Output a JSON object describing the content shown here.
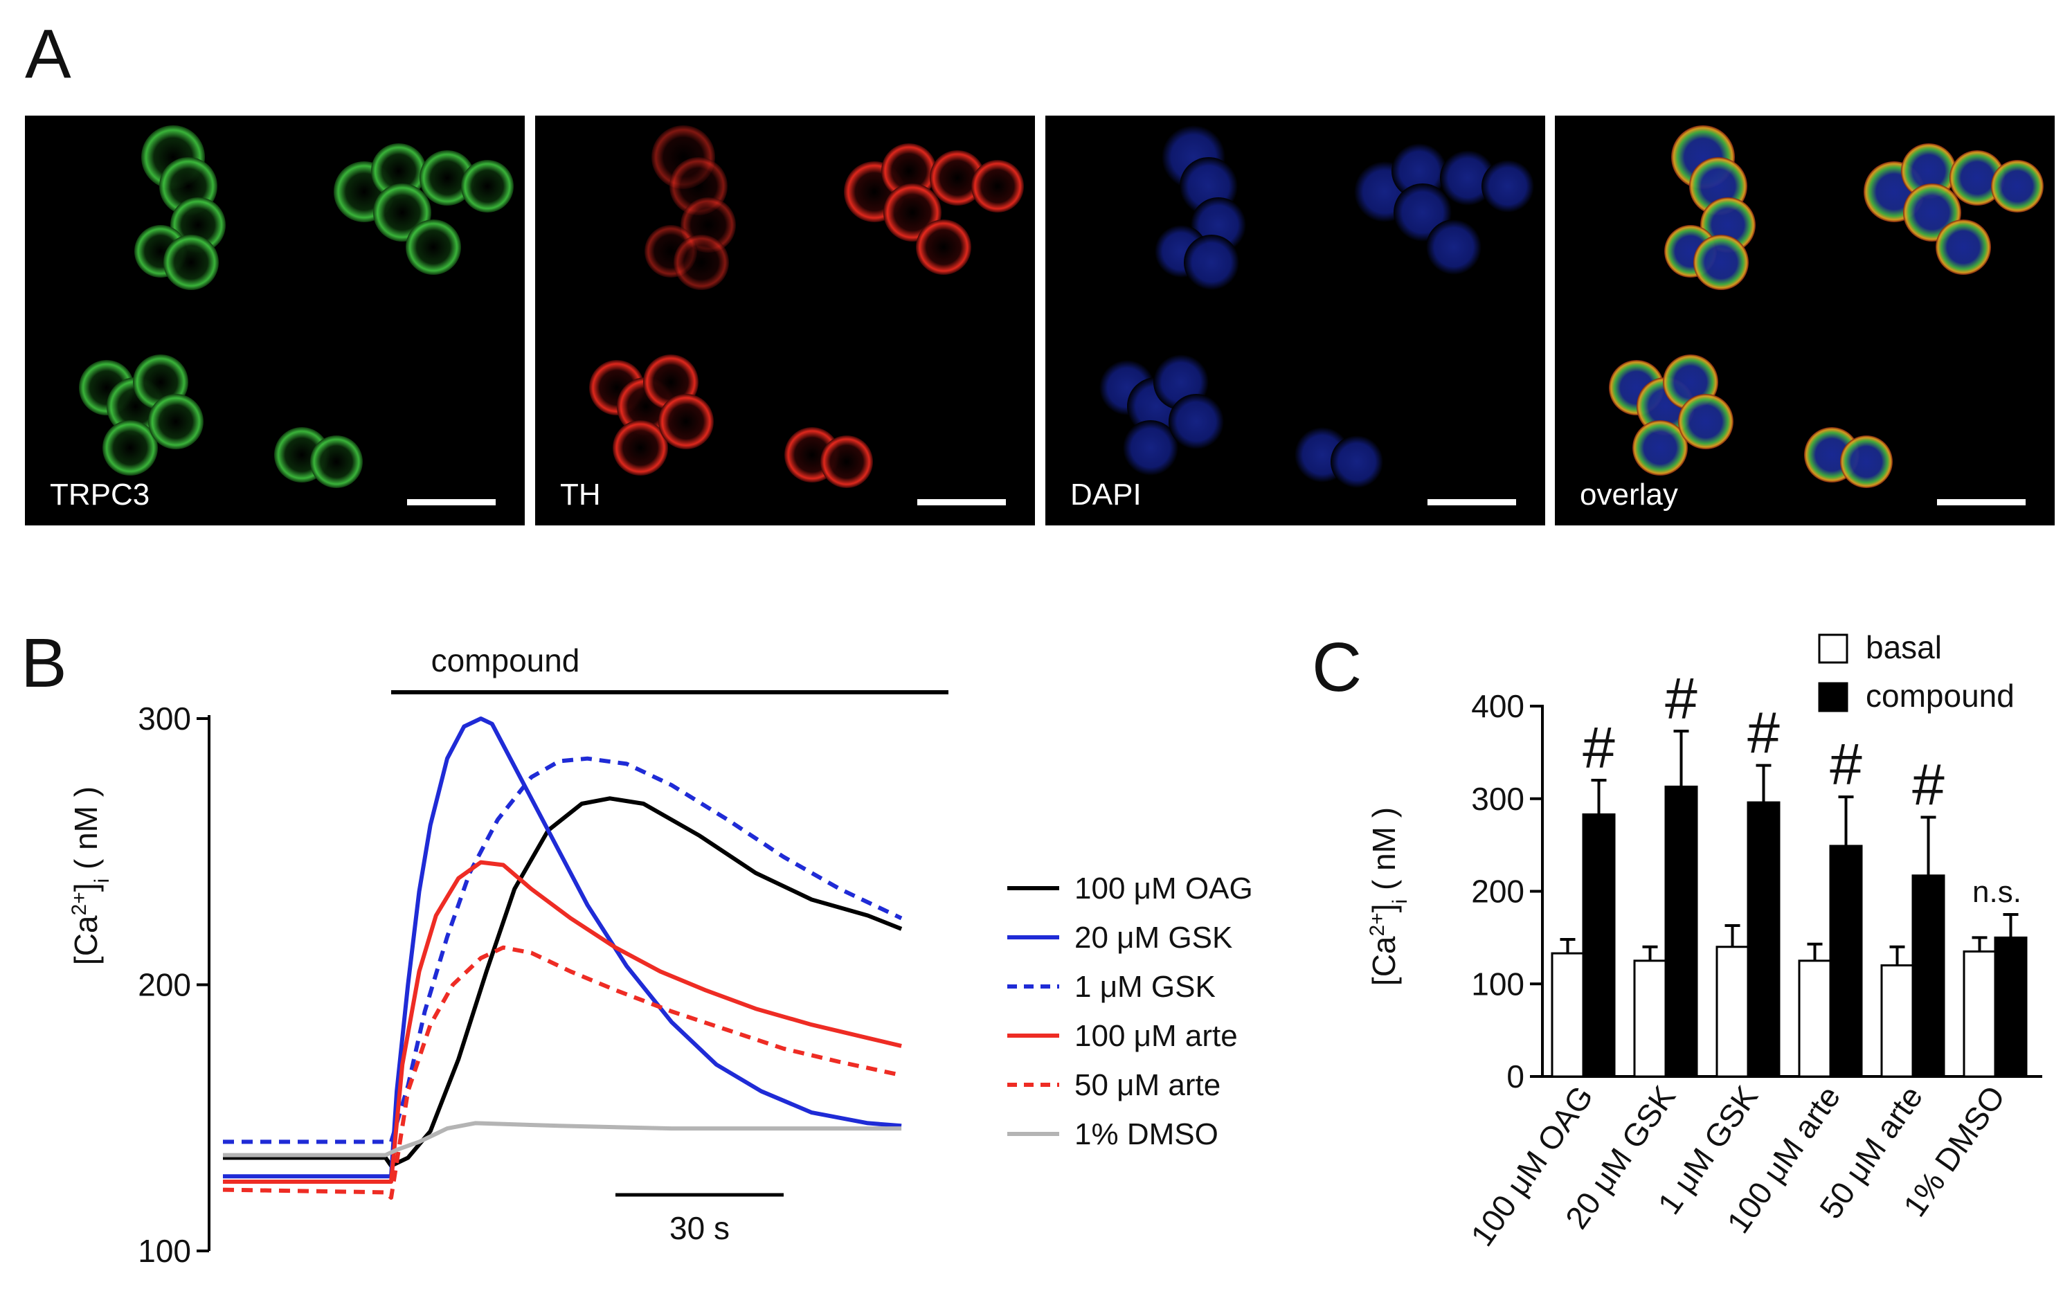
{
  "panel_a": {
    "letter": "A",
    "images": [
      {
        "label": "TRPC3",
        "stain": "green",
        "color": "#2fae2f"
      },
      {
        "label": "TH",
        "stain": "red",
        "color": "#d9201c"
      },
      {
        "label": "DAPI",
        "stain": "blue",
        "color": "#1c2c9e"
      },
      {
        "label": "overlay",
        "stain": "overlay",
        "color": "#d8a020"
      }
    ]
  },
  "chart_data": [
    {
      "panel_letter": "B",
      "type": "line",
      "bar_label": "compound",
      "ylabel": "[Ca2+]i ( nM )",
      "ylabel_parts": {
        "base": "[Ca",
        "sup": "2+",
        "close": "]",
        "sub": "i",
        "units": "  ( nM )"
      },
      "yticks": [
        "100",
        "200",
        "300"
      ],
      "ylim": [
        100,
        300
      ],
      "time_window_s": [
        0,
        130
      ],
      "compound_on_s": 30,
      "scale_bar_label": "30 s",
      "scale_bar_s": 30,
      "series": [
        {
          "name": "100 μM OAG",
          "color": "#000000",
          "dash": "solid",
          "points": [
            [
              0,
              135
            ],
            [
              29,
              135
            ],
            [
              30,
              132
            ],
            [
              33,
              135
            ],
            [
              37,
              145
            ],
            [
              42,
              172
            ],
            [
              47,
              205
            ],
            [
              52,
              236
            ],
            [
              58,
              258
            ],
            [
              64,
              268
            ],
            [
              69,
              270
            ],
            [
              75,
              268
            ],
            [
              85,
              256
            ],
            [
              95,
              242
            ],
            [
              105,
              232
            ],
            [
              115,
              226
            ],
            [
              121,
              221
            ]
          ]
        },
        {
          "name": "20 μM GSK",
          "color": "#1f2bd6",
          "dash": "solid",
          "points": [
            [
              0,
              128
            ],
            [
              29,
              128
            ],
            [
              30,
              128
            ],
            [
              31,
              160
            ],
            [
              33,
              200
            ],
            [
              35,
              235
            ],
            [
              37,
              260
            ],
            [
              40,
              285
            ],
            [
              43,
              297
            ],
            [
              46,
              300
            ],
            [
              48,
              298
            ],
            [
              52,
              282
            ],
            [
              58,
              258
            ],
            [
              65,
              230
            ],
            [
              72,
              207
            ],
            [
              80,
              186
            ],
            [
              88,
              170
            ],
            [
              96,
              160
            ],
            [
              105,
              152
            ],
            [
              115,
              148
            ],
            [
              121,
              147
            ]
          ]
        },
        {
          "name": "1 μM GSK",
          "color": "#1f2bd6",
          "dash": "dashed",
          "points": [
            [
              0,
              141
            ],
            [
              29,
              141
            ],
            [
              30,
              141
            ],
            [
              33,
              162
            ],
            [
              36,
              190
            ],
            [
              40,
              218
            ],
            [
              44,
              242
            ],
            [
              49,
              262
            ],
            [
              55,
              278
            ],
            [
              60,
              284
            ],
            [
              65,
              285
            ],
            [
              72,
              283
            ],
            [
              80,
              275
            ],
            [
              90,
              262
            ],
            [
              100,
              248
            ],
            [
              110,
              236
            ],
            [
              121,
              225
            ]
          ]
        },
        {
          "name": "100 μM arte",
          "color": "#ee2c24",
          "dash": "solid",
          "points": [
            [
              0,
              126
            ],
            [
              29,
              126
            ],
            [
              30,
              126
            ],
            [
              32,
              170
            ],
            [
              35,
              205
            ],
            [
              38,
              226
            ],
            [
              42,
              240
            ],
            [
              46,
              246
            ],
            [
              50,
              245
            ],
            [
              55,
              236
            ],
            [
              62,
              225
            ],
            [
              70,
              214
            ],
            [
              78,
              205
            ],
            [
              86,
              198
            ],
            [
              95,
              191
            ],
            [
              105,
              185
            ],
            [
              115,
              180
            ],
            [
              121,
              177
            ]
          ]
        },
        {
          "name": "50 μM arte",
          "color": "#ee2c24",
          "dash": "dashed",
          "points": [
            [
              0,
              123
            ],
            [
              29,
              122
            ],
            [
              30,
              120
            ],
            [
              33,
              160
            ],
            [
              37,
              185
            ],
            [
              41,
              200
            ],
            [
              46,
              210
            ],
            [
              50,
              214
            ],
            [
              55,
              212
            ],
            [
              62,
              205
            ],
            [
              70,
              198
            ],
            [
              80,
              190
            ],
            [
              90,
              183
            ],
            [
              100,
              176
            ],
            [
              110,
              171
            ],
            [
              121,
              166
            ]
          ]
        },
        {
          "name": "1% DMSO",
          "color": "#b4b4b4",
          "dash": "solid",
          "points": [
            [
              0,
              136
            ],
            [
              29,
              136
            ],
            [
              31,
              138
            ],
            [
              35,
              141
            ],
            [
              40,
              146
            ],
            [
              45,
              148
            ],
            [
              60,
              147
            ],
            [
              80,
              146
            ],
            [
              100,
              146
            ],
            [
              121,
              146
            ]
          ]
        }
      ]
    },
    {
      "panel_letter": "C",
      "type": "bar",
      "ylabel": "[Ca2+]i ( nM )",
      "ylabel_parts": {
        "base": "[Ca",
        "sup": "2+",
        "close": "]",
        "sub": "i",
        "units": "  ( nM )"
      },
      "ylim": [
        0,
        400
      ],
      "yticks": [
        "0",
        "100",
        "200",
        "300",
        "400"
      ],
      "categories": [
        "100 μM OAG",
        "20 μM GSK",
        "1 μM GSK",
        "100 μM arte",
        "50 μM arte",
        "1% DMSO"
      ],
      "series": [
        {
          "name": "basal",
          "fill": "#ffffff",
          "values": [
            133,
            125,
            140,
            125,
            120,
            135
          ],
          "errors": [
            15,
            15,
            23,
            18,
            20,
            15
          ]
        },
        {
          "name": "compound",
          "fill": "#000000",
          "values": [
            283,
            313,
            296,
            249,
            217,
            150
          ],
          "errors": [
            37,
            60,
            40,
            53,
            63,
            25
          ]
        }
      ],
      "annotations": [
        "#",
        "#",
        "#",
        "#",
        "#",
        "n.s."
      ],
      "legend_position": "top-right"
    }
  ]
}
